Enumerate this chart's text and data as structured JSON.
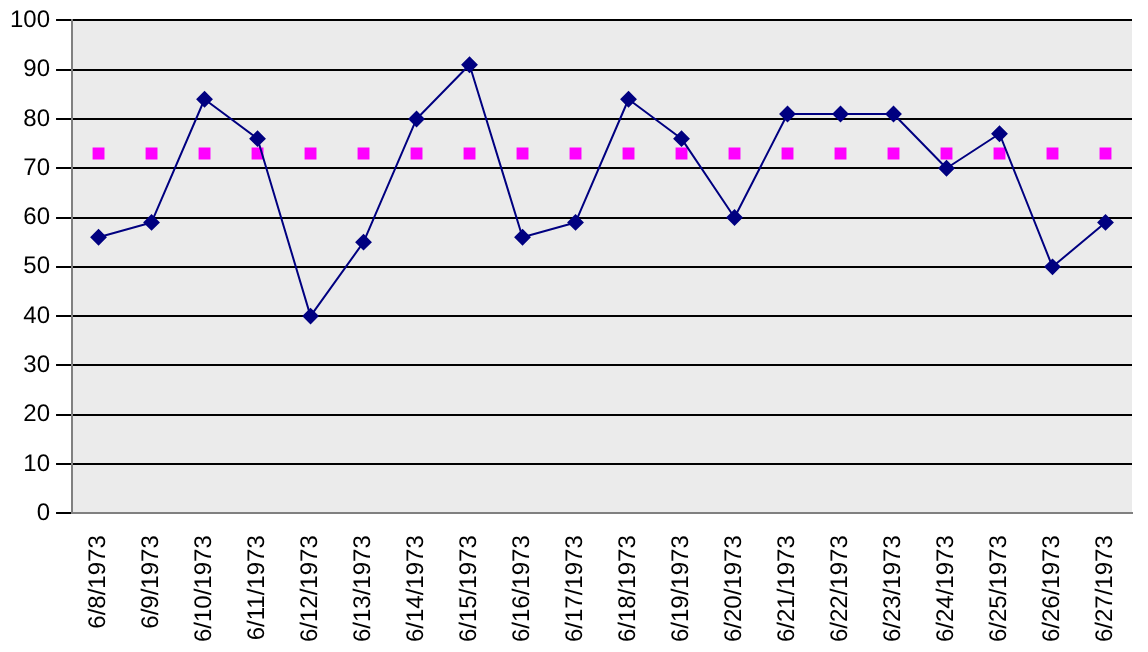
{
  "chart_data": {
    "type": "line",
    "categories": [
      "6/8/1973",
      "6/9/1973",
      "6/10/1973",
      "6/11/1973",
      "6/12/1973",
      "6/13/1973",
      "6/14/1973",
      "6/15/1973",
      "6/16/1973",
      "6/17/1973",
      "6/18/1973",
      "6/19/1973",
      "6/20/1973",
      "6/21/1973",
      "6/22/1973",
      "6/23/1973",
      "6/24/1973",
      "6/25/1973",
      "6/26/1973",
      "6/27/1973"
    ],
    "series": [
      {
        "color": "#000080",
        "marker": "diamond",
        "values": [
          56,
          59,
          84,
          76,
          40,
          55,
          80,
          91,
          56,
          59,
          84,
          76,
          60,
          81,
          81,
          81,
          70,
          77,
          50,
          59
        ]
      },
      {
        "type": "scatter",
        "color": "#ff00ff",
        "marker": "square",
        "values": [
          73,
          73,
          73,
          73,
          73,
          73,
          73,
          73,
          73,
          73,
          73,
          73,
          73,
          73,
          73,
          73,
          73,
          73,
          73,
          73
        ]
      }
    ],
    "ylim": [
      0,
      100
    ],
    "yticks": [
      0,
      10,
      20,
      30,
      40,
      50,
      60,
      70,
      80,
      90,
      100
    ],
    "grid": "y"
  }
}
